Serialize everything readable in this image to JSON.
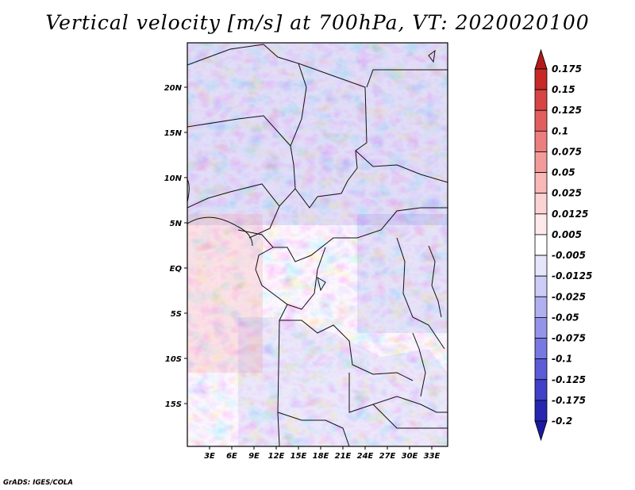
{
  "title": "Vertical velocity [m/s] at 700hPa, VT: 2020020100",
  "footer": "GrADS: IGES/COLA",
  "map": {
    "lat_labels": [
      "20N",
      "15N",
      "10N",
      "5N",
      "EQ",
      "5S",
      "10S",
      "15S"
    ],
    "lon_labels": [
      "3E",
      "6E",
      "9E",
      "12E",
      "15E",
      "18E",
      "21E",
      "24E",
      "27E",
      "30E",
      "33E"
    ]
  },
  "colorbar": {
    "levels": [
      "0.175",
      "0.15",
      "0.125",
      "0.1",
      "0.075",
      "0.05",
      "0.025",
      "0.0125",
      "0.005",
      "-0.005",
      "-0.0125",
      "-0.025",
      "-0.05",
      "-0.075",
      "-0.1",
      "-0.125",
      "-0.175",
      "-0.2"
    ],
    "colors": [
      "#b31b1b",
      "#c62828",
      "#d84343",
      "#e35f5f",
      "#ec7e7e",
      "#f39b9b",
      "#f8b8b8",
      "#fbd3d3",
      "#fde9e9",
      "#ffffff",
      "#e6e6fb",
      "#ccccf6",
      "#b0b0f0",
      "#9494ea",
      "#7878e2",
      "#5c5cd8",
      "#4040c8",
      "#2626b0",
      "#1a1aa0"
    ]
  }
}
